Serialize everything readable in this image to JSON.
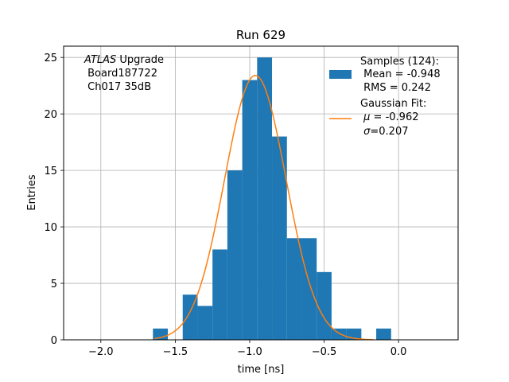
{
  "chart_data": {
    "type": "bar",
    "title": "Run 629",
    "xlabel": "time [ns]",
    "ylabel": "Entries",
    "xlim": [
      -2.25,
      0.4
    ],
    "ylim": [
      0,
      26
    ],
    "xticks": [
      -2.0,
      -1.5,
      -1.0,
      -0.5,
      0.0
    ],
    "xtick_labels": [
      "−2.0",
      "−1.5",
      "−1.0",
      "−0.5",
      "0.0"
    ],
    "yticks": [
      0,
      5,
      10,
      15,
      20,
      25
    ],
    "ytick_labels": [
      "0",
      "5",
      "10",
      "15",
      "20",
      "25"
    ],
    "grid": true,
    "bar_color": "#1f77b4",
    "fit_color": "#ff7f0e",
    "histogram": {
      "bin_edges": [
        -1.65,
        -1.55,
        -1.45,
        -1.35,
        -1.25,
        -1.15,
        -1.05,
        -0.95,
        -0.85,
        -0.75,
        -0.65,
        -0.55,
        -0.45,
        -0.35,
        -0.25,
        -0.15,
        -0.05
      ],
      "counts": [
        1,
        0,
        4,
        3,
        8,
        15,
        23,
        25,
        18,
        9,
        9,
        6,
        1,
        1,
        0,
        1
      ]
    },
    "gaussian_fit": {
      "mu": -0.962,
      "sigma": 0.207,
      "peak": 23.4,
      "x_range": [
        -1.64,
        -0.17
      ]
    },
    "annotation": {
      "italic_part": "ATLAS",
      "line1_rest": " Upgrade",
      "line2": " Board187722",
      "line3": " Ch017 35dB"
    },
    "legend": {
      "position": "top-right",
      "samples": {
        "line1": "Samples (124):",
        "line2": " Mean = -0.948",
        "line3": " RMS = 0.242"
      },
      "fit": {
        "line1": "Gaussian Fit:",
        "mu_prefix": " ",
        "mu_symbol": "μ",
        "mu_suffix": " = -0.962",
        "sigma_prefix": " ",
        "sigma_symbol": "σ",
        "sigma_suffix": "=0.207"
      }
    }
  }
}
